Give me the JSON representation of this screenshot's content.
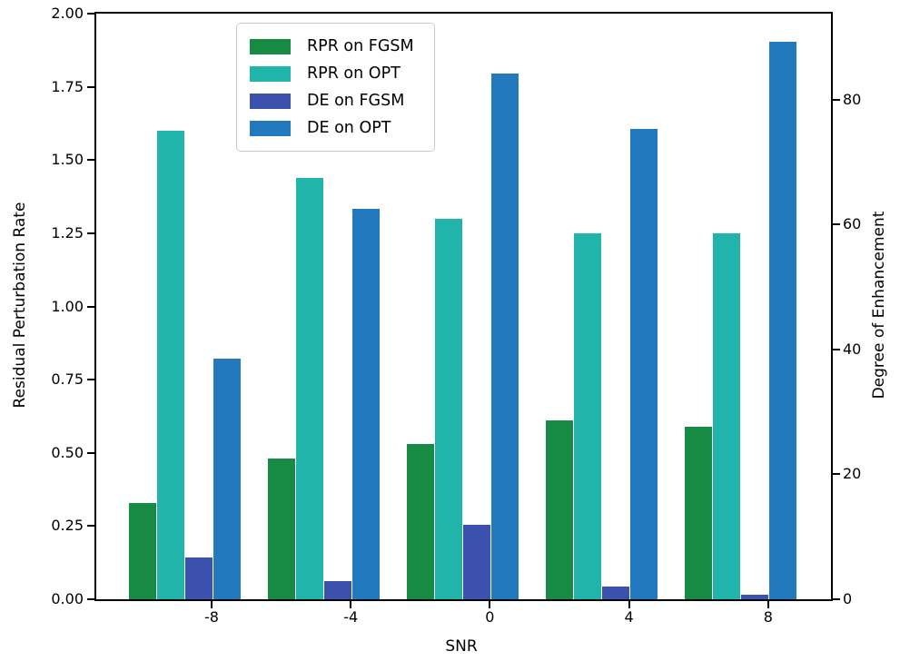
{
  "chart_data": {
    "type": "bar",
    "title": "",
    "xlabel": "SNR",
    "ylabel_left": "Residual Perturbation Rate",
    "ylabel_right": "Degree of Enhancement",
    "categories": [
      "-8",
      "-4",
      "0",
      "4",
      "8"
    ],
    "left_axis": {
      "min": 0,
      "max": 2.0,
      "tick_labels": [
        "0.00",
        "0.25",
        "0.50",
        "0.75",
        "1.00",
        "1.25",
        "1.50",
        "1.75",
        "2.00"
      ],
      "tick_values": [
        0,
        0.25,
        0.5,
        0.75,
        1.0,
        1.25,
        1.5,
        1.75,
        2.0
      ]
    },
    "right_axis": {
      "min": 0,
      "max": 93.8,
      "tick_labels": [
        "0",
        "20",
        "40",
        "60",
        "80"
      ],
      "tick_values": [
        0,
        20,
        40,
        60,
        80
      ]
    },
    "series": [
      {
        "name": "RPR on FGSM",
        "axis": "left",
        "color": "#178a43",
        "values": [
          0.33,
          0.48,
          0.53,
          0.61,
          0.59
        ]
      },
      {
        "name": "RPR on OPT",
        "axis": "left",
        "color": "#20b4ab",
        "values": [
          1.6,
          1.44,
          1.3,
          1.25,
          1.25
        ]
      },
      {
        "name": "DE on FGSM",
        "axis": "right",
        "color": "#3b51ad",
        "values": [
          6.7,
          2.9,
          11.9,
          2.0,
          0.7
        ]
      },
      {
        "name": "DE on OPT",
        "axis": "right",
        "color": "#2379bd",
        "values": [
          38.5,
          62.5,
          84.2,
          75.3,
          89.3
        ]
      }
    ],
    "legend_position": "upper left",
    "grid": false
  }
}
